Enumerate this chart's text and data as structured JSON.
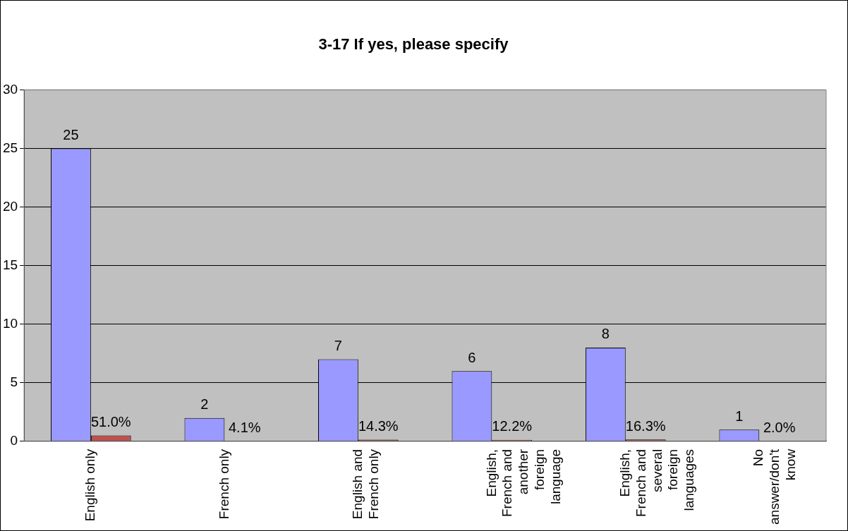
{
  "chart_data": {
    "type": "bar",
    "title": "3-17 If yes, please specify",
    "categories": [
      "English only",
      "French only",
      "English and French only",
      "English, French and another foreign language",
      "English, French and several foreign languages",
      "No answer/don't know"
    ],
    "series": [
      {
        "color": "#9999ff",
        "values": [
          25,
          2,
          7,
          6,
          8,
          1
        ],
        "value_labels": [
          "25",
          "2",
          "7",
          "6",
          "8",
          "1"
        ]
      },
      {
        "color": "#c0504d",
        "values": [
          0.51,
          0.041,
          0.143,
          0.122,
          0.163,
          0.02
        ],
        "value_labels": [
          "51.0%",
          "4.1%",
          "14.3%",
          "12.2%",
          "16.3%",
          "2.0%"
        ]
      }
    ],
    "ylim": [
      0,
      30
    ],
    "yticks": [
      0,
      5,
      10,
      15,
      20,
      25,
      30
    ],
    "grid": "y",
    "legend": false
  }
}
